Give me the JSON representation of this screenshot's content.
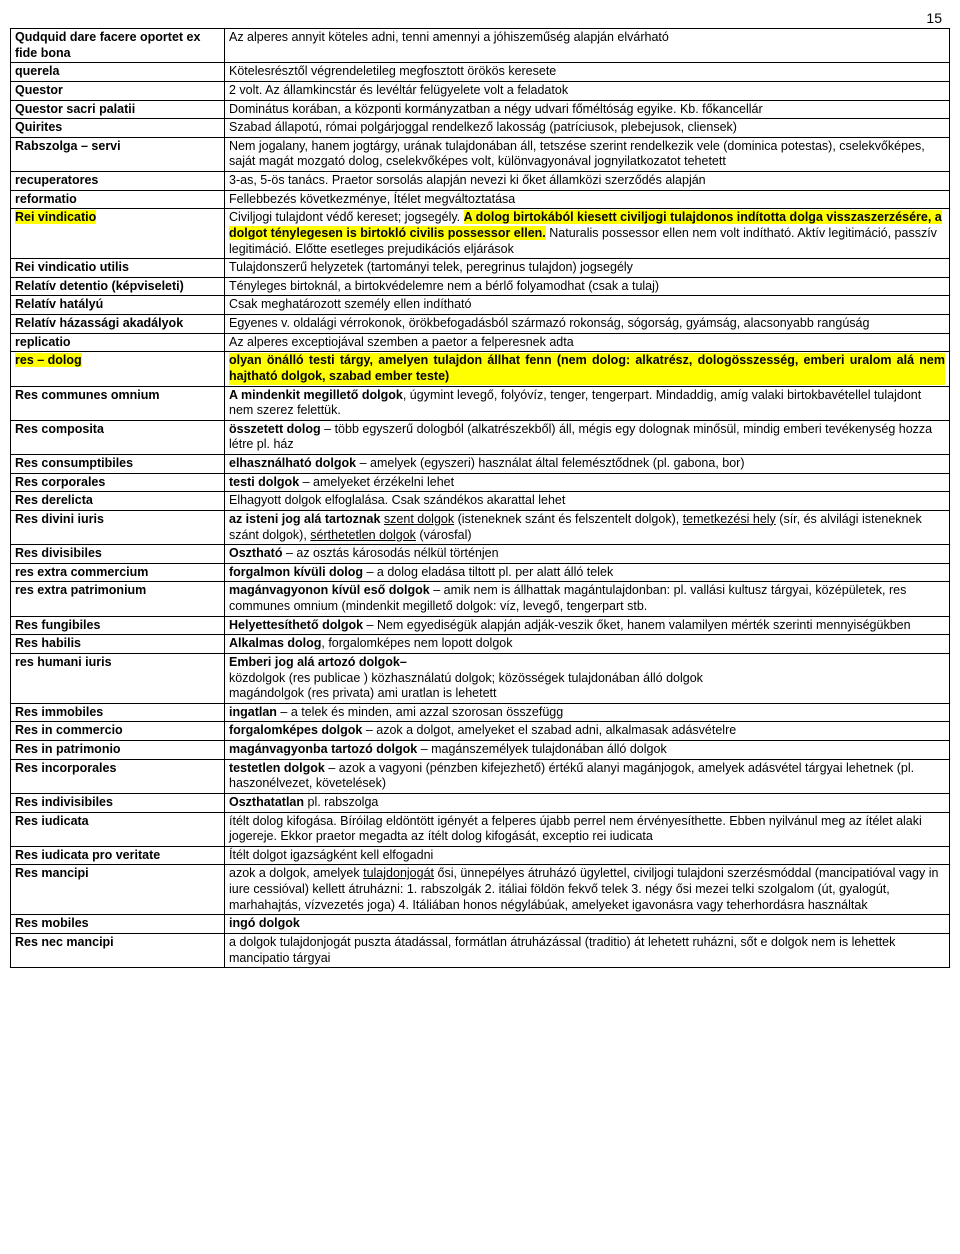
{
  "page_number": "15",
  "rows": [
    {
      "term": "Qudquid dare facere oportet ex fide bona",
      "def_html": "Az alperes annyit köteles adni, tenni amennyi a jóhiszeműség alapján elvárható"
    },
    {
      "term": "querela",
      "def_html": "Kötelesrésztől végrendeletileg megfosztott örökös keresete"
    },
    {
      "term": "Questor",
      "def_html": "2 volt. Az államkincstár és levéltár felügyelete volt a feladatok"
    },
    {
      "term": "Questor sacri palatii",
      "def_html": "Dominátus korában, a központi kormányzatban a négy udvari főméltóság egyike. Kb. főkancellár"
    },
    {
      "term": "Quirites",
      "def_html": "Szabad állapotú, római polgárjoggal rendelkező lakosság (patríciusok, plebejusok, cliensek)"
    },
    {
      "term": "Rabszolga – servi",
      "def_html": "Nem jogalany, hanem jogtárgy, urának tulajdonában áll, tetszése szerint rendelkezik vele (dominica potestas), cselekvőképes, saját magát mozgató dolog, cselekvőképes volt, különvagyonával jognyilatkozatot tehetett"
    },
    {
      "term": "recuperatores",
      "def_html": "3-as, 5-ös tanács. Praetor sorsolás alapján nevezi ki őket államközi szerződés alapján"
    },
    {
      "term": "reformatio",
      "def_html": "Fellebbezés következménye, Ítélet megváltoztatása"
    },
    {
      "term_html": "<span class=\"hl\">Rei vindicatio</span>",
      "def_html": "Civiljogi tulajdont védő kereset; jogsegély. <span class=\"hl\">A dolog birtokából kiesett civiljogi tulajdonos indította dolga visszaszerzésére, a dolgot ténylegesen is birtokló civilis possessor ellen.</span> Naturalis possessor ellen nem volt indítható. Aktív legitimáció, passzív legitimáció. Előtte esetleges prejudikációs eljárások"
    },
    {
      "term": "Rei vindicatio utilis",
      "def_html": "Tulajdonszerű helyzetek (tartományi telek, peregrinus tulajdon) jogsegély"
    },
    {
      "term": "Relatív detentio (képviseleti)",
      "def_html": "Tényleges birtoknál, a birtokvédelemre nem a bérlő folyamodhat (csak a tulaj)"
    },
    {
      "term": "Relatív hatályú",
      "def_html": "Csak meghatározott személy ellen indítható"
    },
    {
      "term": "Relatív házassági akadályok",
      "def_html": "Egyenes v. oldalági vérrokonok, örökbefogadásból származó rokonság, sógorság, gyámság, alacsonyabb rangúság"
    },
    {
      "term": "replicatio",
      "def_html": "Az alperes exceptiojával szemben a paetor a felperesnek adta"
    },
    {
      "term_html": "<span class=\"hl\">res – dolog</span>",
      "def_html": "<span class=\"hl just\" style=\"display:block\">olyan önálló testi tárgy, amelyen tulajdon állhat fenn (nem dolog: alkatrész, dologösszesség, emberi uralom alá nem hajtható dolgok, szabad ember teste)</span>"
    },
    {
      "term": "Res communes omnium",
      "def_html": "<span class=\"b\">A mindenkit megillető dolgok</span>, úgymint levegő, folyóvíz, tenger, tengerpart. Mindaddig, amíg valaki birtokbavétellel tulajdont nem szerez felettük."
    },
    {
      "term": "Res composita",
      "def_html": "<span class=\"b\">összetett dolog</span> – több egyszerű dologból (alkatrészekből) áll, mégis egy dolognak minősül, mindig emberi tevékenység hozza létre pl. ház"
    },
    {
      "term": "Res consumptibiles",
      "def_html": "<span class=\"b\">elhasználható dolgok</span> – amelyek (egyszeri) használat által felemésztődnek (pl. gabona, bor)"
    },
    {
      "term": "Res corporales",
      "def_html": "<span class=\"b\">testi dolgok</span> – amelyeket érzékelni lehet"
    },
    {
      "term": "Res derelicta",
      "def_html": "Elhagyott dolgok elfoglalása. Csak szándékos akarattal lehet"
    },
    {
      "term": "Res divini iuris",
      "def_html": "<span class=\"b\">az isteni jog alá tartoznak</span> <span class=\"ul\">szent dolgok</span> (isteneknek szánt és felszentelt dolgok), <span class=\"ul\">temetkezési hely</span> (sír, és alvilági isteneknek szánt dolgok), <span class=\"ul\">sérthetetlen dolgok</span> (városfal)"
    },
    {
      "term": "Res divisibiles",
      "def_html": "<span class=\"b\">Osztható</span> – az osztás károsodás nélkül történjen"
    },
    {
      "term": "res extra commercium",
      "def_html": "<span class=\"b\">forgalmon kívüli dolog</span> – a dolog eladása tiltott pl. per alatt álló telek"
    },
    {
      "term": "res extra patrimonium",
      "def_html": "<span class=\"b\">magánvagyonon kívül eső dolgok</span> – amik nem is állhattak magántulajdonban: pl. vallási kultusz tárgyai, középületek, res communes omnium (mindenkit megillető dolgok: víz, levegő, tengerpart stb."
    },
    {
      "term": "Res fungibiles",
      "def_html": "<span class=\"b\">Helyettesíthető dolgok</span> – Nem egyediségük alapján adják-veszik őket, hanem valamilyen mérték szerinti mennyiségükben"
    },
    {
      "term": "Res habilis",
      "def_html": "<span class=\"b\">Alkalmas dolog</span>, forgalomképes nem lopott dolgok"
    },
    {
      "term": "res humani iuris",
      "def_html": "<span class=\"b\">Emberi jog alá artozó dolgok–</span><br>közdolgok (res publicae ) közhasználatú dolgok; közösségek tulajdonában álló dolgok<br>magándolgok (res privata) ami uratlan is lehetett"
    },
    {
      "term": "Res immobiles",
      "def_html": "<span class=\"b\">ingatlan</span> – a telek és minden, ami azzal szorosan összefügg"
    },
    {
      "term": "Res in commercio",
      "def_html": "<span class=\"b\">forgalomképes dolgok</span> – azok a dolgot, amelyeket el szabad adni, alkalmasak adásvételre"
    },
    {
      "term": "Res in patrimonio",
      "def_html": "<span class=\"b\">magánvagyonba tartozó dolgok</span> – magánszemélyek tulajdonában álló dolgok"
    },
    {
      "term": "Res incorporales",
      "def_html": "<span class=\"b\">testetlen dolgok</span> – azok a vagyoni (pénzben kifejezhető) értékű alanyi magánjogok, amelyek adásvétel tárgyai lehetnek (pl. haszonélvezet, követelések)"
    },
    {
      "term": "Res indivisibiles",
      "def_html": "<span class=\"b\">Oszthatatlan</span> pl. rabszolga"
    },
    {
      "term": "Res iudicata",
      "def_html": "ítélt dolog kifogása. Bíróilag eldöntött igényét a felperes újabb perrel nem érvényesíthette. Ebben nyilvánul meg az ítélet alaki jogereje. Ekkor praetor megadta az ítélt dolog kifogását, exceptio rei iudicata"
    },
    {
      "term": "Res iudicata pro veritate",
      "def_html": "Ítélt dolgot igazságként kell elfogadni"
    },
    {
      "term": "Res mancipi",
      "def_html": "azok a dolgok, amelyek <span class=\"ul\">tulajdonjogát</span> ősi, ünnepélyes átruházó ügylettel, civiljogi tulajdoni szerzésmóddal (mancipatióval vagy in iure cessióval) kellett átruházni: 1. rabszolgák 2. itáliai földön fekvő telek 3. négy ősi mezei telki szolgalom (út, gyalogút, marhahajtás, vízvezetés joga) 4. Itáliában honos négylábúak, amelyeket igavonásra vagy teherhordásra használtak"
    },
    {
      "term": "Res mobiles",
      "def_html": "<span class=\"b\">ingó dolgok</span>"
    },
    {
      "term": "Res nec mancipi",
      "def_html": "a dolgok tulajdonjogát puszta átadással, formátlan átruházással (traditio) át lehetett ruházni, sőt e dolgok nem is lehettek mancipatio tárgyai"
    }
  ]
}
